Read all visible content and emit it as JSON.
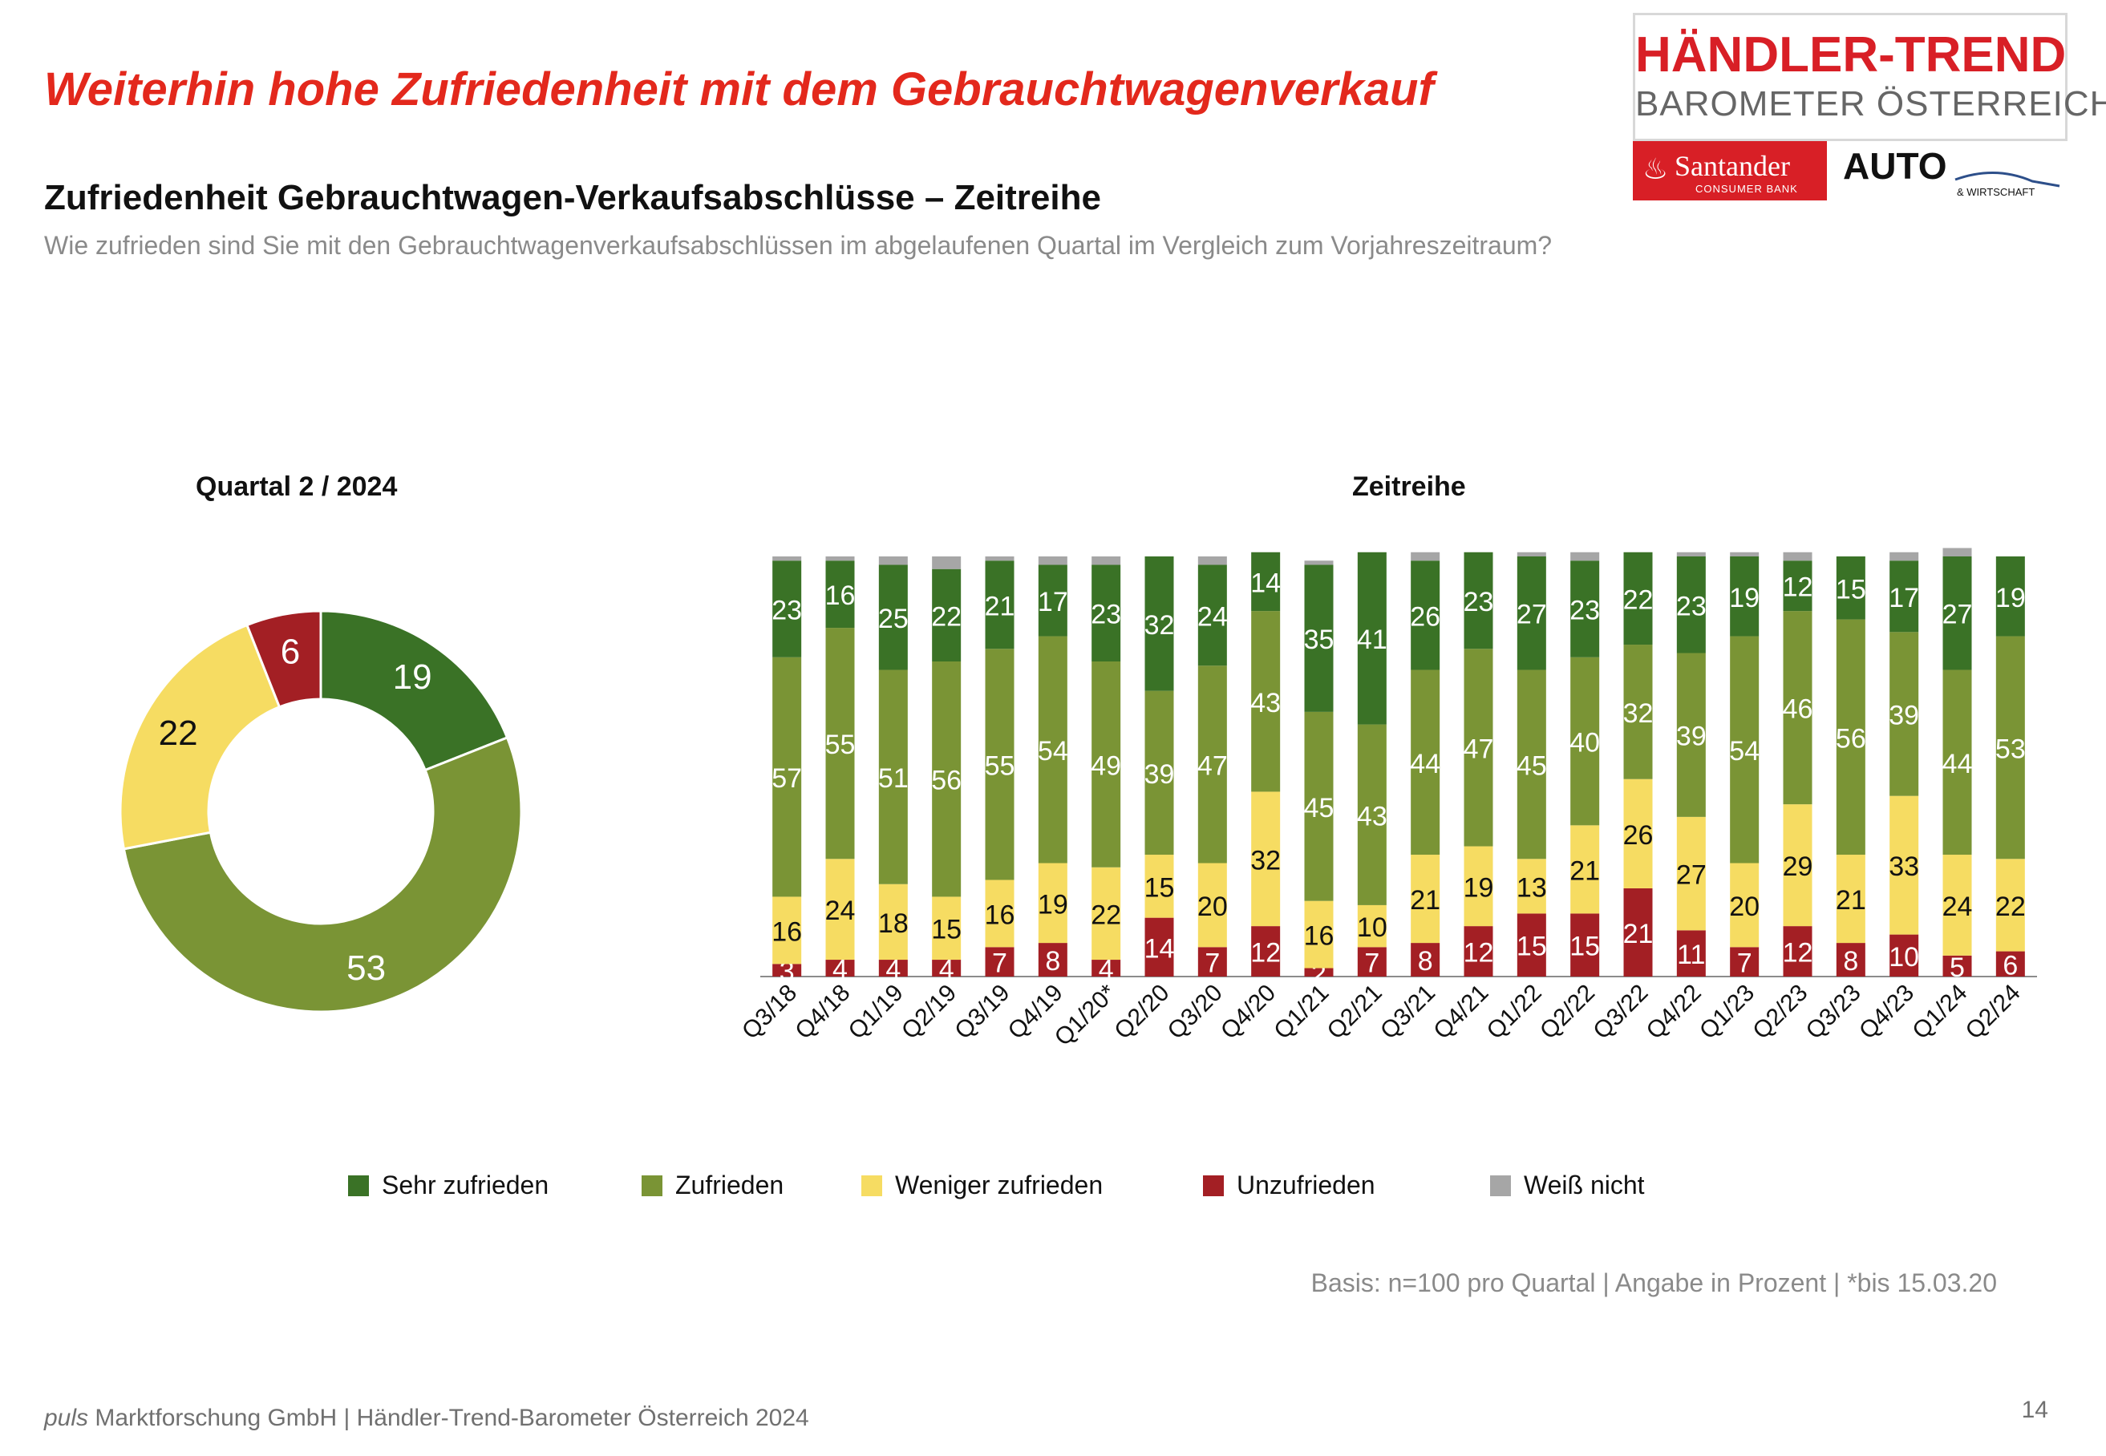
{
  "header": {
    "title": "Weiterhin hohe Zufriedenheit mit dem Gebrauchtwagenverkauf",
    "subtitle": "Zufriedenheit Gebrauchtwagen-Verkaufsabschlüsse – Zeitreihe",
    "question": "Wie zufrieden sind Sie mit den Gebrauchtwagenverkaufsabschlüssen im abgelaufenen Quartal im Vergleich zum Vorjahreszeitraum?"
  },
  "logo": {
    "brand_top": "HÄNDLER-TREND",
    "brand_sub": "BAROMETER ÖSTERREICH",
    "santander_name": "Santander",
    "santander_sub": "CONSUMER BANK",
    "auto_text": "AUTO",
    "auto_sub": "& WIRTSCHAFT"
  },
  "colors": {
    "sehr_zufrieden": "#3a7226",
    "zufrieden": "#7a9435",
    "weniger_zufrieden": "#f6dc62",
    "unzufrieden": "#a31f24",
    "weiss_nicht": "#a6a6a6"
  },
  "legend": [
    {
      "label": "Sehr zufrieden",
      "key": "sehr_zufrieden"
    },
    {
      "label": "Zufrieden",
      "key": "zufrieden"
    },
    {
      "label": "Weniger zufrieden",
      "key": "weniger_zufrieden"
    },
    {
      "label": "Unzufrieden",
      "key": "unzufrieden"
    },
    {
      "label": "Weiß nicht",
      "key": "weiss_nicht"
    }
  ],
  "chart_data": [
    {
      "type": "pie",
      "title": "Quartal 2 / 2024",
      "style": "donut",
      "slices": [
        {
          "label": "Sehr zufrieden",
          "value": 19,
          "key": "sehr_zufrieden"
        },
        {
          "label": "Zufrieden",
          "value": 53,
          "key": "zufrieden"
        },
        {
          "label": "Weniger zufrieden",
          "value": 22,
          "key": "weniger_zufrieden"
        },
        {
          "label": "Unzufrieden",
          "value": 6,
          "key": "unzufrieden"
        }
      ]
    },
    {
      "type": "bar",
      "stacked": true,
      "title": "Zeitreihe",
      "ylim": [
        0,
        100
      ],
      "categories": [
        "Q3/18",
        "Q4/18",
        "Q1/19",
        "Q2/19",
        "Q3/19",
        "Q4/19",
        "Q1/20*",
        "Q2/20",
        "Q3/20",
        "Q4/20",
        "Q1/21",
        "Q2/21",
        "Q3/21",
        "Q4/21",
        "Q1/22",
        "Q2/22",
        "Q3/22",
        "Q4/22",
        "Q1/23",
        "Q2/23",
        "Q3/23",
        "Q4/23",
        "Q1/24",
        "Q2/24"
      ],
      "series": [
        {
          "name": "Unzufrieden",
          "key": "unzufrieden",
          "values": [
            3,
            4,
            4,
            4,
            7,
            8,
            4,
            14,
            7,
            12,
            2,
            7,
            8,
            12,
            15,
            15,
            21,
            11,
            7,
            12,
            8,
            10,
            5,
            6
          ]
        },
        {
          "name": "Weniger zufrieden",
          "key": "weniger_zufrieden",
          "values": [
            16,
            24,
            18,
            15,
            16,
            19,
            22,
            15,
            20,
            32,
            16,
            10,
            21,
            19,
            13,
            21,
            26,
            27,
            20,
            29,
            21,
            33,
            24,
            22
          ]
        },
        {
          "name": "Zufrieden",
          "key": "zufrieden",
          "values": [
            57,
            55,
            51,
            56,
            55,
            54,
            49,
            39,
            47,
            43,
            45,
            43,
            44,
            47,
            45,
            40,
            32,
            39,
            54,
            46,
            56,
            39,
            44,
            53
          ]
        },
        {
          "name": "Sehr zufrieden",
          "key": "sehr_zufrieden",
          "values": [
            23,
            16,
            25,
            22,
            21,
            17,
            23,
            32,
            24,
            14,
            35,
            41,
            26,
            23,
            27,
            23,
            22,
            23,
            19,
            12,
            15,
            17,
            27,
            19
          ]
        },
        {
          "name": "Weiß nicht",
          "key": "weiss_nicht",
          "values": [
            1,
            1,
            2,
            3,
            1,
            2,
            2,
            0,
            2,
            0,
            1,
            0,
            2,
            0,
            1,
            2,
            0,
            1,
            1,
            2,
            0,
            2,
            2,
            0
          ]
        }
      ]
    }
  ],
  "notes": {
    "basis": "Basis: n=100 pro Quartal | Angabe in Prozent | *bis 15.03.20"
  },
  "footer": {
    "brand": "puls",
    "text": " Marktforschung GmbH | Händler-Trend-Barometer Österreich 2024",
    "page_number": "14"
  }
}
